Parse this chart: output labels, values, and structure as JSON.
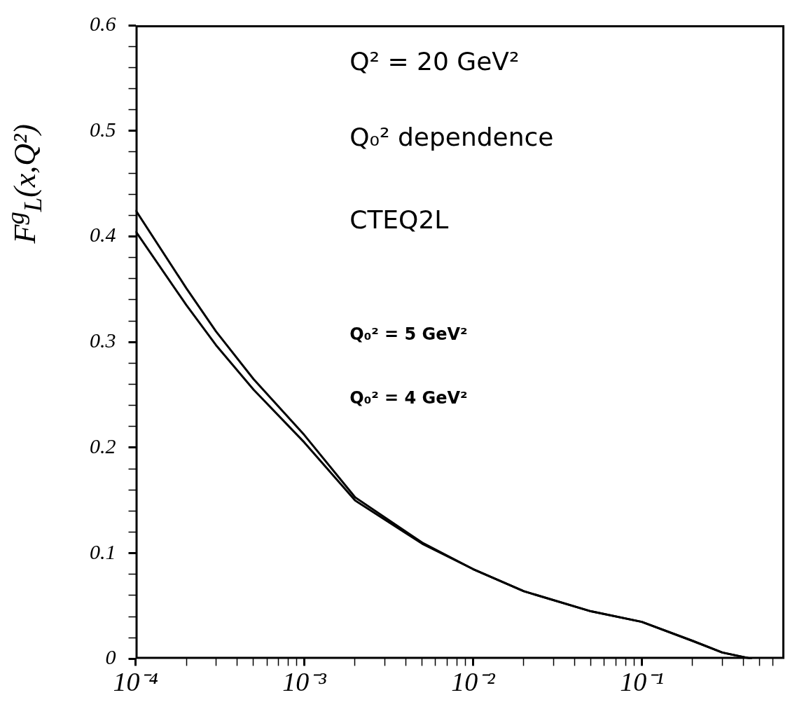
{
  "chart_data": {
    "type": "line",
    "ylabel": "F$^{g}$$_{L}$(x,Q²)",
    "annotations": [
      "Q² = 20 GeV²",
      "Q₀² dependence",
      "CTEQ2L",
      "Q₀² = 5 GeV²",
      "Q₀² = 4 GeV²"
    ],
    "series": [
      {
        "color": "#000000",
        "x": [
          0.0001,
          0.0002,
          0.0003,
          0.0005,
          0.001,
          0.002,
          0.005,
          0.01,
          0.02,
          0.05,
          0.1,
          0.2,
          0.3,
          0.45
        ],
        "values": [
          0.425,
          0.351,
          0.31,
          0.265,
          0.212,
          0.153,
          0.11,
          0.085,
          0.064,
          0.045,
          0.035,
          0.017,
          0.006,
          0
        ]
      },
      {
        "color": "#000000",
        "x": [
          0.0001,
          0.0002,
          0.0003,
          0.0005,
          0.001,
          0.002,
          0.005,
          0.01,
          0.02,
          0.05,
          0.1,
          0.2,
          0.3,
          0.45
        ],
        "values": [
          0.405,
          0.335,
          0.297,
          0.255,
          0.205,
          0.15,
          0.109,
          0.085,
          0.064,
          0.045,
          0.035,
          0.017,
          0.006,
          0
        ]
      }
    ],
    "log": "x",
    "xlim": [
      0.0001,
      0.7
    ],
    "xticks": [
      {
        "value": 0.0001,
        "label": "10⁻⁴"
      },
      {
        "value": 0.0002,
        "label": null
      },
      {
        "value": 0.0003,
        "label": null
      },
      {
        "value": 0.0004,
        "label": null
      },
      {
        "value": 0.0005,
        "label": null
      },
      {
        "value": 0.0006,
        "label": null
      },
      {
        "value": 0.0007,
        "label": null
      },
      {
        "value": 0.0008,
        "label": null
      },
      {
        "value": 0.0009,
        "label": null
      },
      {
        "value": 0.001,
        "label": "10⁻³"
      },
      {
        "value": 0.002,
        "label": null
      },
      {
        "value": 0.003,
        "label": null
      },
      {
        "value": 0.004,
        "label": null
      },
      {
        "value": 0.005,
        "label": null
      },
      {
        "value": 0.006,
        "label": null
      },
      {
        "value": 0.007,
        "label": null
      },
      {
        "value": 0.008,
        "label": null
      },
      {
        "value": 0.009,
        "label": null
      },
      {
        "value": 0.01,
        "label": "10⁻²"
      },
      {
        "value": 0.02,
        "label": null
      },
      {
        "value": 0.03,
        "label": null
      },
      {
        "value": 0.04,
        "label": null
      },
      {
        "value": 0.05,
        "label": null
      },
      {
        "value": 0.06,
        "label": null
      },
      {
        "value": 0.07,
        "label": null
      },
      {
        "value": 0.08,
        "label": null
      },
      {
        "value": 0.09,
        "label": null
      },
      {
        "value": 0.1,
        "label": "10⁻¹"
      },
      {
        "value": 0.2,
        "label": null
      },
      {
        "value": 0.3,
        "label": null
      },
      {
        "value": 0.4,
        "label": null
      },
      {
        "value": 0.5,
        "label": null
      },
      {
        "value": 0.6,
        "label": null
      }
    ],
    "ylim": [
      0,
      0.6
    ],
    "yticks": [
      0,
      {
        "value": 0.02,
        "label": null
      },
      {
        "value": 0.04,
        "label": null
      },
      {
        "value": 0.06,
        "label": null
      },
      {
        "value": 0.08,
        "label": null
      },
      0.1,
      {
        "value": 0.12,
        "label": null
      },
      {
        "value": 0.14,
        "label": null
      },
      {
        "value": 0.16,
        "label": null
      },
      {
        "value": 0.18,
        "label": null
      },
      0.2,
      {
        "value": 0.22,
        "label": null
      },
      {
        "value": 0.24,
        "label": null
      },
      {
        "value": 0.26,
        "label": null
      },
      {
        "value": 0.28,
        "label": null
      },
      0.3,
      {
        "value": 0.32,
        "label": null
      },
      {
        "value": 0.34,
        "label": null
      },
      {
        "value": 0.36,
        "label": null
      },
      {
        "value": 0.38,
        "label": null
      },
      0.4,
      {
        "value": 0.42,
        "label": null
      },
      {
        "value": 0.44,
        "label": null
      },
      {
        "value": 0.46,
        "label": null
      },
      {
        "value": 0.48,
        "label": null
      },
      0.5,
      {
        "value": 0.52,
        "label": null
      },
      {
        "value": 0.54,
        "label": null
      },
      {
        "value": 0.56,
        "label": null
      },
      {
        "value": 0.58,
        "label": null
      },
      0.6
    ],
    "grid": false,
    "legend": false,
    "marker": "none",
    "line_style": "solid"
  }
}
